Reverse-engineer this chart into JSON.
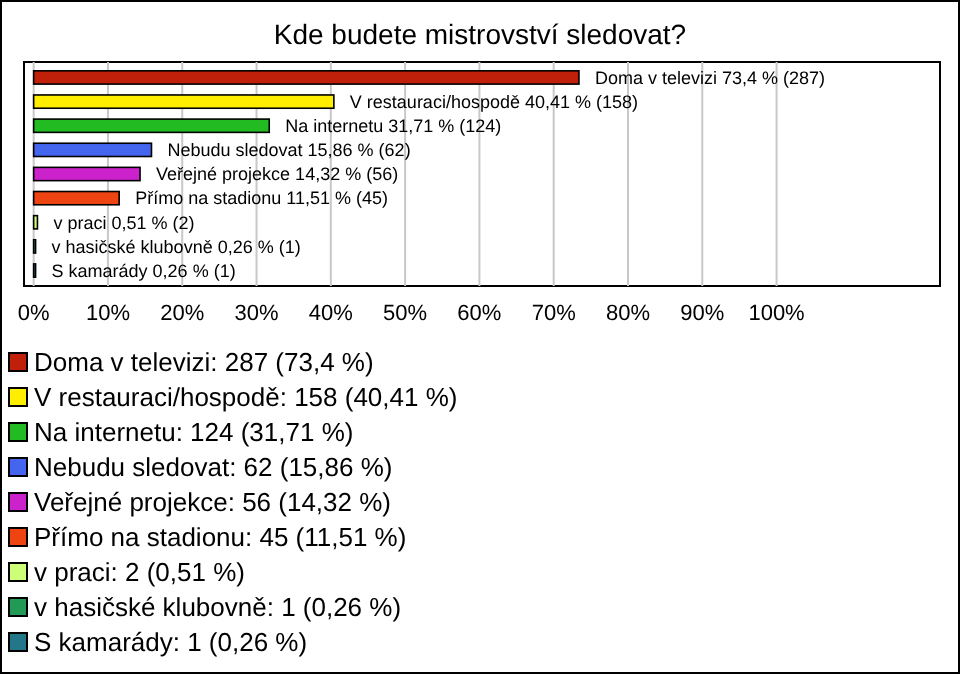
{
  "chart_data": {
    "type": "bar",
    "orientation": "horizontal",
    "title": "Kde budete mistrovství sledovat?",
    "categories": [
      "Doma v televizi",
      "V restauraci/hospodě",
      "Na internetu",
      "Nebudu sledovat",
      "Veřejné projekce",
      "Přímo na stadionu",
      "v praci",
      "v hasičské klubovně",
      "S kamarády"
    ],
    "values": [
      73.4,
      40.41,
      31.71,
      15.86,
      14.32,
      11.51,
      0.51,
      0.26,
      0.26
    ],
    "value_labels": [
      "73,4 % (287)",
      "40,41 % (158)",
      "31,71 % (124)",
      "15,86 % (62)",
      "14,32 % (56)",
      "11,51 % (45)",
      "0,51 % (2)",
      "0,26 % (1)",
      "0,26 % (1)"
    ],
    "colors": [
      "#c0200a",
      "#ffee00",
      "#22bb22",
      "#4466ee",
      "#cc22cc",
      "#ee4411",
      "#ccff77",
      "#229955",
      "#227788"
    ],
    "xlim": [
      -1.3,
      122
    ],
    "xticks": [
      {
        "value": 0,
        "label": "0%"
      },
      {
        "value": 10,
        "label": "10%"
      },
      {
        "value": 20,
        "label": "20%"
      },
      {
        "value": 30,
        "label": "30%"
      },
      {
        "value": 40,
        "label": "40%"
      },
      {
        "value": 50,
        "label": "50%"
      },
      {
        "value": 60,
        "label": "60%"
      },
      {
        "value": 70,
        "label": "70%"
      },
      {
        "value": 80,
        "label": "80%"
      },
      {
        "value": 90,
        "label": "90%"
      },
      {
        "value": 100,
        "label": "100%"
      }
    ],
    "grid": "x",
    "annotations": [
      "Doma v televizi: 287 (73,4 %)",
      "V restauraci/hospodě: 158 (40,41 %)",
      "Na internetu: 124 (31,71 %)",
      "Nebudu sledovat: 62 (15,86 %)",
      "Veřejné projekce: 56 (14,32 %)",
      "Přímo na stadionu: 45 (11,51 %)",
      "v praci: 2 (0,51 %)",
      "v hasičské klubovně: 1 (0,26 %)",
      "S kamarády: 1 (0,26 %)"
    ]
  }
}
